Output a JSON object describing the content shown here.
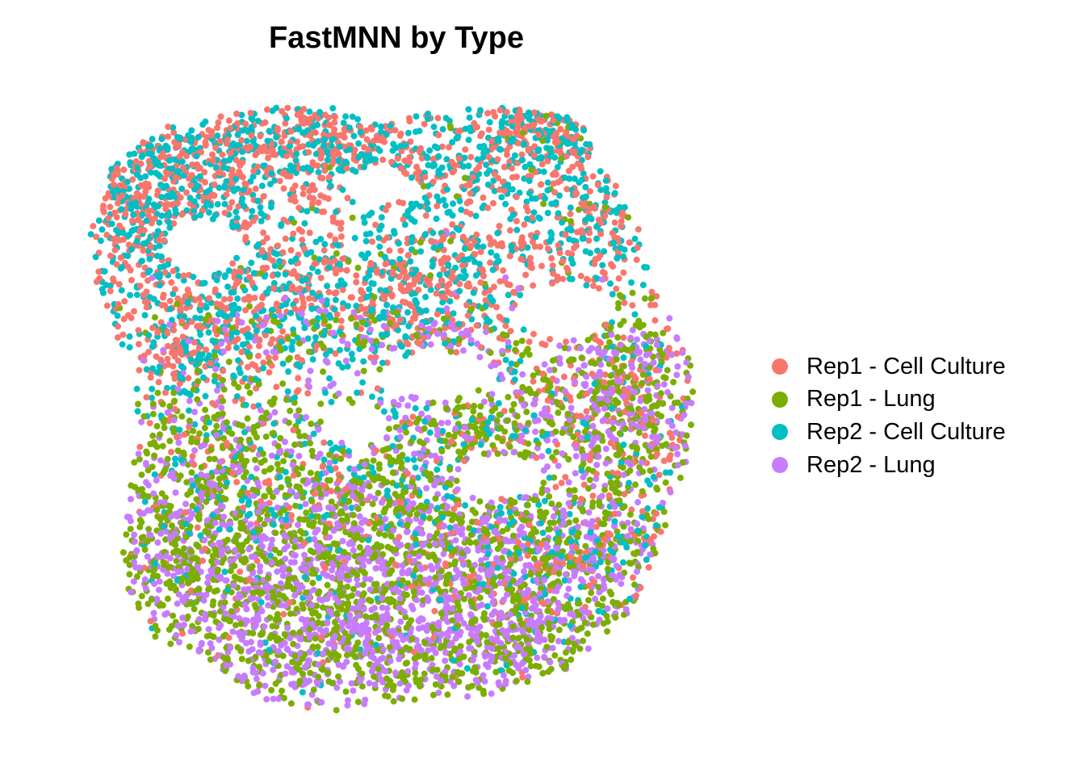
{
  "chart_data": {
    "type": "scatter",
    "title": "FastMNN by Type",
    "xlabel": "",
    "ylabel": "",
    "axes_visible": false,
    "grid": false,
    "legend_position": "right",
    "series": [
      {
        "name": "Rep1 - Cell Culture",
        "color": "#F8766D"
      },
      {
        "name": "Rep1 - Lung",
        "color": "#7CAE00"
      },
      {
        "name": "Rep2 - Cell Culture",
        "color": "#00BFC4"
      },
      {
        "name": "Rep2 - Lung",
        "color": "#C77CFF"
      }
    ]
  }
}
